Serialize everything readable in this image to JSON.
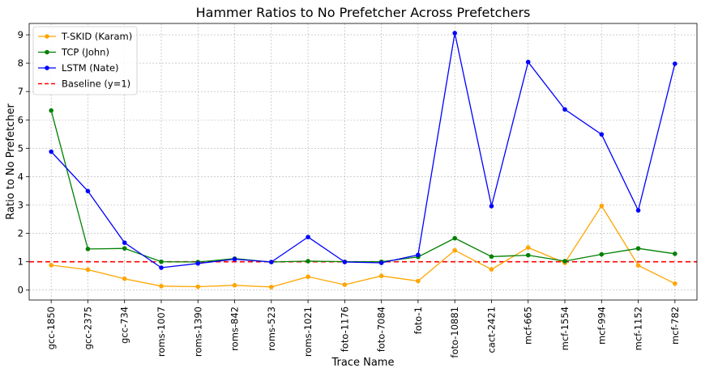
{
  "chart_data": {
    "type": "line",
    "title": "Hammer Ratios to No Prefetcher Across Prefetchers",
    "xlabel": "Trace Name",
    "ylabel": "Ratio to No Prefetcher",
    "ylim": [
      -0.35,
      9.4
    ],
    "yticks": [
      0,
      1,
      2,
      3,
      4,
      5,
      6,
      7,
      8,
      9
    ],
    "grid": true,
    "legend_position": "upper-left",
    "categories": [
      "gcc-1850",
      "gcc-2375",
      "gcc-734",
      "roms-1007",
      "roms-1390",
      "roms-842",
      "roms-523",
      "roms-1021",
      "foto-1176",
      "foto-7084",
      "foto-1",
      "foto-10881",
      "cact-2421",
      "mcf-665",
      "mcf-1554",
      "mcf-994",
      "mcf-1152",
      "mcf-782"
    ],
    "series": [
      {
        "name": "T-SKID (Karam)",
        "color": "#ffa500",
        "values": [
          0.88,
          0.72,
          0.4,
          0.14,
          0.12,
          0.17,
          0.11,
          0.47,
          0.19,
          0.5,
          0.32,
          1.4,
          0.73,
          1.5,
          0.96,
          2.97,
          0.87,
          0.23
        ]
      },
      {
        "name": "TCP (John)",
        "color": "#008000",
        "values": [
          6.33,
          1.45,
          1.47,
          1.0,
          0.99,
          1.11,
          0.99,
          1.02,
          1.0,
          1.0,
          1.17,
          1.83,
          1.18,
          1.23,
          1.02,
          1.26,
          1.47,
          1.28
        ]
      },
      {
        "name": "LSTM (Nate)",
        "color": "#0000ff",
        "values": [
          4.88,
          3.49,
          1.67,
          0.79,
          0.94,
          1.09,
          0.99,
          1.87,
          0.99,
          0.96,
          1.24,
          9.06,
          2.96,
          8.04,
          6.37,
          5.49,
          2.81,
          7.98
        ]
      }
    ],
    "baseline": {
      "name": "Baseline (y=1)",
      "value": 1,
      "color": "#ff0000"
    }
  }
}
